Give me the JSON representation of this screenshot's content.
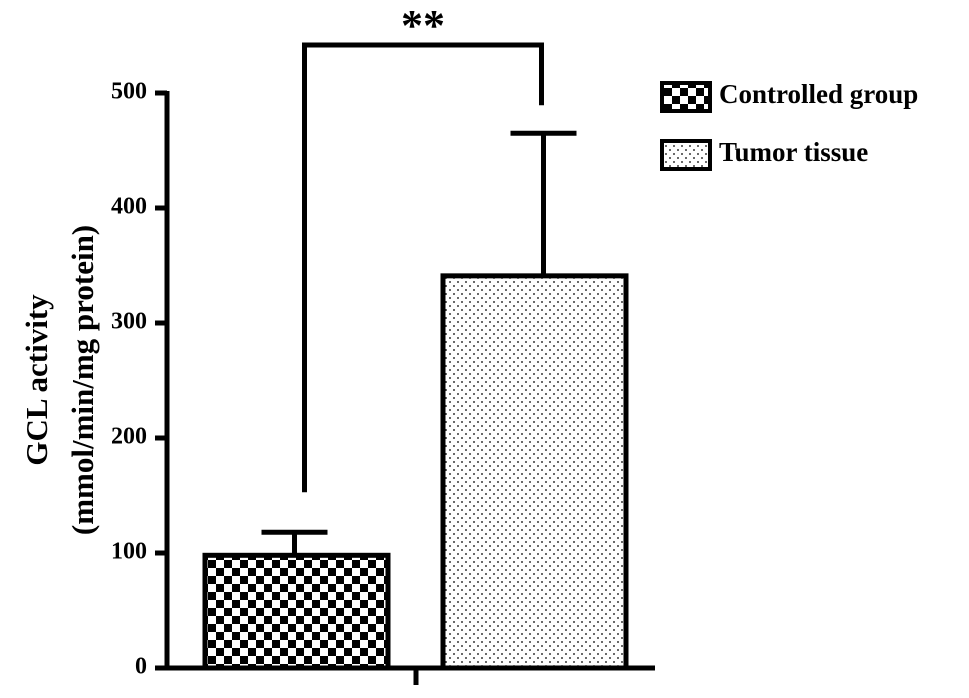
{
  "chart_data": {
    "type": "bar",
    "ylabel": [
      "GCL activity",
      "(mmol/min/mg protein)"
    ],
    "categories": [
      null
    ],
    "series": [
      {
        "name": "Controlled group",
        "color": "#000000",
        "pattern": "checker",
        "values": [
          98
        ],
        "errors": [
          20
        ]
      },
      {
        "name": "Tumor tissue",
        "color": "#000000",
        "pattern": "dots",
        "values": [
          341
        ],
        "errors": [
          124
        ]
      }
    ],
    "ylim": [
      0,
      500
    ],
    "yticks": [
      0,
      100,
      200,
      300,
      400,
      500
    ],
    "annotation": "**",
    "legend": "top-right"
  }
}
